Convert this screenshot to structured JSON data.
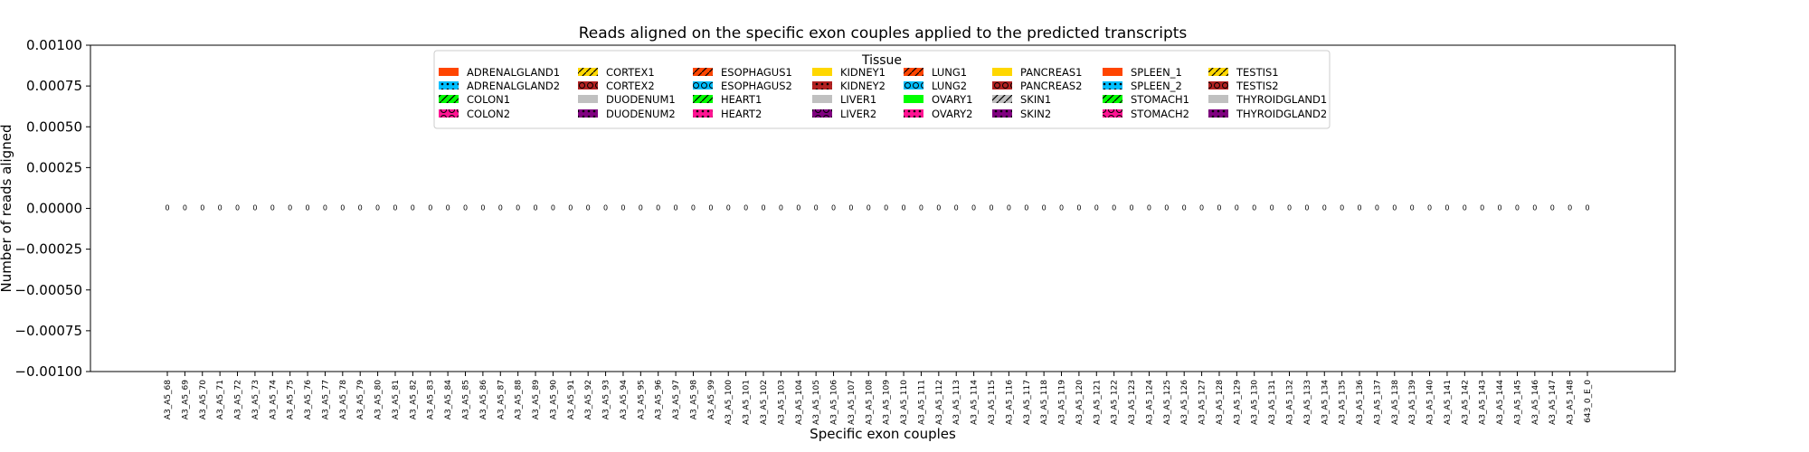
{
  "chart_data": {
    "type": "bar",
    "title": "Reads aligned on the specific exon couples applied to the predicted transcripts",
    "xlabel": "Specific exon couples",
    "ylabel": "Number of reads aligned",
    "ylim": [
      -0.001,
      0.001
    ],
    "yticks": [
      -0.001,
      -0.00075,
      -0.0005,
      -0.00025,
      0.0,
      0.00025,
      0.0005,
      0.00075,
      0.001
    ],
    "ytick_labels": [
      "−0.00100",
      "−0.00075",
      "−0.00050",
      "−0.00025",
      "0.00000",
      "0.00025",
      "0.00050",
      "0.00075",
      "0.00100"
    ],
    "grid": false,
    "legend_title": "Tissue",
    "legend_placement": "top-center",
    "categories": [
      "A3_A5_68",
      "A3_A5_69",
      "A3_A5_70",
      "A3_A5_71",
      "A3_A5_72",
      "A3_A5_73",
      "A3_A5_74",
      "A3_A5_75",
      "A3_A5_76",
      "A3_A5_77",
      "A3_A5_78",
      "A3_A5_79",
      "A3_A5_80",
      "A3_A5_81",
      "A3_A5_82",
      "A3_A5_83",
      "A3_A5_84",
      "A3_A5_85",
      "A3_A5_86",
      "A3_A5_87",
      "A3_A5_88",
      "A3_A5_89",
      "A3_A5_90",
      "A3_A5_91",
      "A3_A5_92",
      "A3_A5_93",
      "A3_A5_94",
      "A3_A5_95",
      "A3_A5_96",
      "A3_A5_97",
      "A3_A5_98",
      "A3_A5_99",
      "A3_A5_100",
      "A3_A5_101",
      "A3_A5_102",
      "A3_A5_103",
      "A3_A5_104",
      "A3_A5_105",
      "A3_A5_106",
      "A3_A5_107",
      "A3_A5_108",
      "A3_A5_109",
      "A3_A5_110",
      "A3_A5_111",
      "A3_A5_112",
      "A3_A5_113",
      "A3_A5_114",
      "A3_A5_115",
      "A3_A5_116",
      "A3_A5_117",
      "A3_A5_118",
      "A3_A5_119",
      "A3_A5_120",
      "A3_A5_121",
      "A3_A5_122",
      "A3_A5_123",
      "A3_A5_124",
      "A3_A5_125",
      "A3_A5_126",
      "A3_A5_127",
      "A3_A5_128",
      "A3_A5_129",
      "A3_A5_130",
      "A3_A5_131",
      "A3_A5_132",
      "A3_A5_133",
      "A3_A5_134",
      "A3_A5_135",
      "A3_A5_136",
      "A3_A5_137",
      "A3_A5_138",
      "A3_A5_139",
      "A3_A5_140",
      "A3_A5_141",
      "A3_A5_142",
      "A3_A5_143",
      "A3_A5_144",
      "A3_A5_145",
      "A3_A5_146",
      "A3_A5_147",
      "A3_A5_148",
      "643_0_E_0"
    ],
    "values": [
      0,
      0,
      0,
      0,
      0,
      0,
      0,
      0,
      0,
      0,
      0,
      0,
      0,
      0,
      0,
      0,
      0,
      0,
      0,
      0,
      0,
      0,
      0,
      0,
      0,
      0,
      0,
      0,
      0,
      0,
      0,
      0,
      0,
      0,
      0,
      0,
      0,
      0,
      0,
      0,
      0,
      0,
      0,
      0,
      0,
      0,
      0,
      0,
      0,
      0,
      0,
      0,
      0,
      0,
      0,
      0,
      0,
      0,
      0,
      0,
      0,
      0,
      0,
      0,
      0,
      0,
      0,
      0,
      0,
      0,
      0,
      0,
      0,
      0,
      0,
      0,
      0,
      0,
      0,
      0,
      0,
      0
    ],
    "data_labels": [
      "0",
      "0",
      "0",
      "0",
      "0",
      "0",
      "0",
      "0",
      "0",
      "0",
      "0",
      "0",
      "0",
      "0",
      "0",
      "0",
      "0",
      "0",
      "0",
      "0",
      "0",
      "0",
      "0",
      "0",
      "0",
      "0",
      "0",
      "0",
      "0",
      "0",
      "0",
      "0",
      "0",
      "0",
      "0",
      "0",
      "0",
      "0",
      "0",
      "0",
      "0",
      "0",
      "0",
      "0",
      "0",
      "0",
      "0",
      "0",
      "0",
      "0",
      "0",
      "0",
      "0",
      "0",
      "0",
      "0",
      "0",
      "0",
      "0",
      "0",
      "0",
      "0",
      "0",
      "0",
      "0",
      "0",
      "0",
      "0",
      "0",
      "0",
      "0",
      "0",
      "0",
      "0",
      "0",
      "0",
      "0",
      "0",
      "0",
      "0",
      "0",
      "0"
    ],
    "series": [
      {
        "name": "ADRENALGLAND1",
        "color": "#ff4500",
        "hatch": ""
      },
      {
        "name": "ADRENALGLAND2",
        "color": "#00bfff",
        "hatch": "dots"
      },
      {
        "name": "COLON1",
        "color": "#00ff00",
        "hatch": "slash"
      },
      {
        "name": "COLON2",
        "color": "#ff1493",
        "hatch": "circles"
      },
      {
        "name": "CORTEX1",
        "color": "#ffd700",
        "hatch": "slash"
      },
      {
        "name": "CORTEX2",
        "color": "#b22222",
        "hatch": "circles"
      },
      {
        "name": "DUODENUM1",
        "color": "#c0c0c0",
        "hatch": ""
      },
      {
        "name": "DUODENUM2",
        "color": "#800080",
        "hatch": "dots"
      },
      {
        "name": "ESOPHAGUS1",
        "color": "#ff4500",
        "hatch": "slash"
      },
      {
        "name": "ESOPHAGUS2",
        "color": "#00bfff",
        "hatch": "circles"
      },
      {
        "name": "HEART1",
        "color": "#00ff00",
        "hatch": "slash"
      },
      {
        "name": "HEART2",
        "color": "#ff1493",
        "hatch": "dots"
      },
      {
        "name": "KIDNEY1",
        "color": "#ffd700",
        "hatch": ""
      },
      {
        "name": "KIDNEY2",
        "color": "#b22222",
        "hatch": "dots"
      },
      {
        "name": "LIVER1",
        "color": "#c0c0c0",
        "hatch": ""
      },
      {
        "name": "LIVER2",
        "color": "#800080",
        "hatch": "circles"
      },
      {
        "name": "LUNG1",
        "color": "#ff4500",
        "hatch": "slash"
      },
      {
        "name": "LUNG2",
        "color": "#00bfff",
        "hatch": "circles"
      },
      {
        "name": "OVARY1",
        "color": "#00ff00",
        "hatch": ""
      },
      {
        "name": "OVARY2",
        "color": "#ff1493",
        "hatch": "dots"
      },
      {
        "name": "PANCREAS1",
        "color": "#ffd700",
        "hatch": ""
      },
      {
        "name": "PANCREAS2",
        "color": "#b22222",
        "hatch": "circles"
      },
      {
        "name": "SKIN1",
        "color": "#c0c0c0",
        "hatch": "slash"
      },
      {
        "name": "SKIN2",
        "color": "#800080",
        "hatch": "dots"
      },
      {
        "name": "SPLEEN_1",
        "color": "#ff4500",
        "hatch": ""
      },
      {
        "name": "SPLEEN_2",
        "color": "#00bfff",
        "hatch": "dots"
      },
      {
        "name": "STOMACH1",
        "color": "#00ff00",
        "hatch": "slash"
      },
      {
        "name": "STOMACH2",
        "color": "#ff1493",
        "hatch": "circles"
      },
      {
        "name": "TESTIS1",
        "color": "#ffd700",
        "hatch": "slash"
      },
      {
        "name": "TESTIS2",
        "color": "#b22222",
        "hatch": "circles"
      },
      {
        "name": "THYROIDGLAND1",
        "color": "#c0c0c0",
        "hatch": ""
      },
      {
        "name": "THYROIDGLAND2",
        "color": "#800080",
        "hatch": "dots"
      }
    ]
  }
}
